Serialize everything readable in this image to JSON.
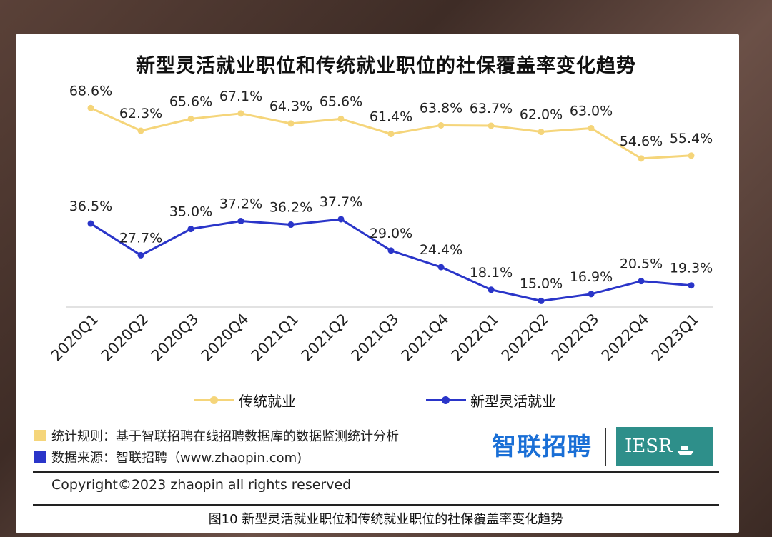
{
  "chart_data": {
    "type": "line",
    "title": "新型灵活就业职位和传统就业职位的社保覆盖率变化趋势",
    "categories": [
      "2020Q1",
      "2020Q2",
      "2020Q3",
      "2020Q4",
      "2021Q1",
      "2021Q2",
      "2021Q3",
      "2021Q4",
      "2022Q1",
      "2022Q2",
      "2022Q3",
      "2022Q4",
      "2023Q1"
    ],
    "series": [
      {
        "name": "传统就业",
        "color": "#f5d57a",
        "values": [
          68.6,
          62.3,
          65.6,
          67.1,
          64.3,
          65.6,
          61.4,
          63.8,
          63.7,
          62.0,
          63.0,
          54.6,
          55.4
        ],
        "labels": [
          "68.6%",
          "62.3%",
          "65.6%",
          "67.1%",
          "64.3%",
          "65.6%",
          "61.4%",
          "63.8%",
          "63.7%",
          "62.0%",
          "63.0%",
          "54.6%",
          "55.4%"
        ]
      },
      {
        "name": "新型灵活就业",
        "color": "#2a35c9",
        "values": [
          36.5,
          27.7,
          35.0,
          37.2,
          36.2,
          37.7,
          29.0,
          24.4,
          18.1,
          15.0,
          16.9,
          20.5,
          19.3
        ],
        "labels": [
          "36.5%",
          "27.7%",
          "35.0%",
          "37.2%",
          "36.2%",
          "37.7%",
          "29.0%",
          "24.4%",
          "18.1%",
          "15.0%",
          "16.9%",
          "20.5%",
          "19.3%"
        ]
      }
    ],
    "legend_position": "bottom",
    "grid": false
  },
  "notes": {
    "rule": "统计规则：基于智联招聘在线招聘数据库的数据监测统计分析",
    "source": "数据来源：智联招聘（www.zhaopin.com)",
    "rule_color": "#f5d57a",
    "source_color": "#2a35c9"
  },
  "brand": {
    "zhaopin": "智联招聘",
    "iesr": "IESR"
  },
  "copyright": "Copyright©2023 zhaopin all rights reserved",
  "caption": "图10 新型灵活就业职位和传统就业职位的社保覆盖率变化趋势"
}
